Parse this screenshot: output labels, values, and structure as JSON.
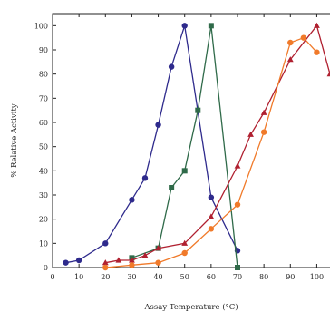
{
  "chart_data": {
    "type": "line",
    "title": "",
    "xlabel": "Assay Temperature (°C)",
    "ylabel": "% Relative Activity",
    "xlim": [
      0,
      105
    ],
    "ylim": [
      0,
      105
    ],
    "xticks": [
      0,
      10,
      20,
      30,
      40,
      50,
      60,
      70,
      80,
      90,
      100
    ],
    "yticks": [
      0,
      10,
      20,
      30,
      40,
      50,
      60,
      70,
      80,
      90,
      100
    ],
    "grid": false,
    "series": [
      {
        "color": "#2e2a8c",
        "marker": "circle",
        "x": [
          5,
          10,
          20,
          30,
          35,
          40,
          45,
          50,
          60,
          70
        ],
        "y": [
          2,
          3,
          10,
          28,
          37,
          59,
          83,
          100,
          29,
          7
        ]
      },
      {
        "color": "#2f6a49",
        "marker": "square",
        "x": [
          30,
          40,
          45,
          50,
          55,
          60,
          70
        ],
        "y": [
          4,
          8,
          33,
          40,
          65,
          100,
          0
        ]
      },
      {
        "color": "#b02030",
        "marker": "triangle",
        "x": [
          20,
          25,
          30,
          35,
          40,
          50,
          60,
          70,
          75,
          80,
          90,
          100,
          105
        ],
        "y": [
          2,
          3,
          3,
          5,
          8,
          10,
          21,
          42,
          55,
          64,
          86,
          100,
          80
        ]
      },
      {
        "color": "#f07a2a",
        "marker": "circle",
        "x": [
          20,
          30,
          40,
          50,
          60,
          70,
          80,
          90,
          95,
          100
        ],
        "y": [
          0,
          1,
          2,
          6,
          16,
          26,
          56,
          93,
          95,
          89
        ]
      }
    ]
  }
}
